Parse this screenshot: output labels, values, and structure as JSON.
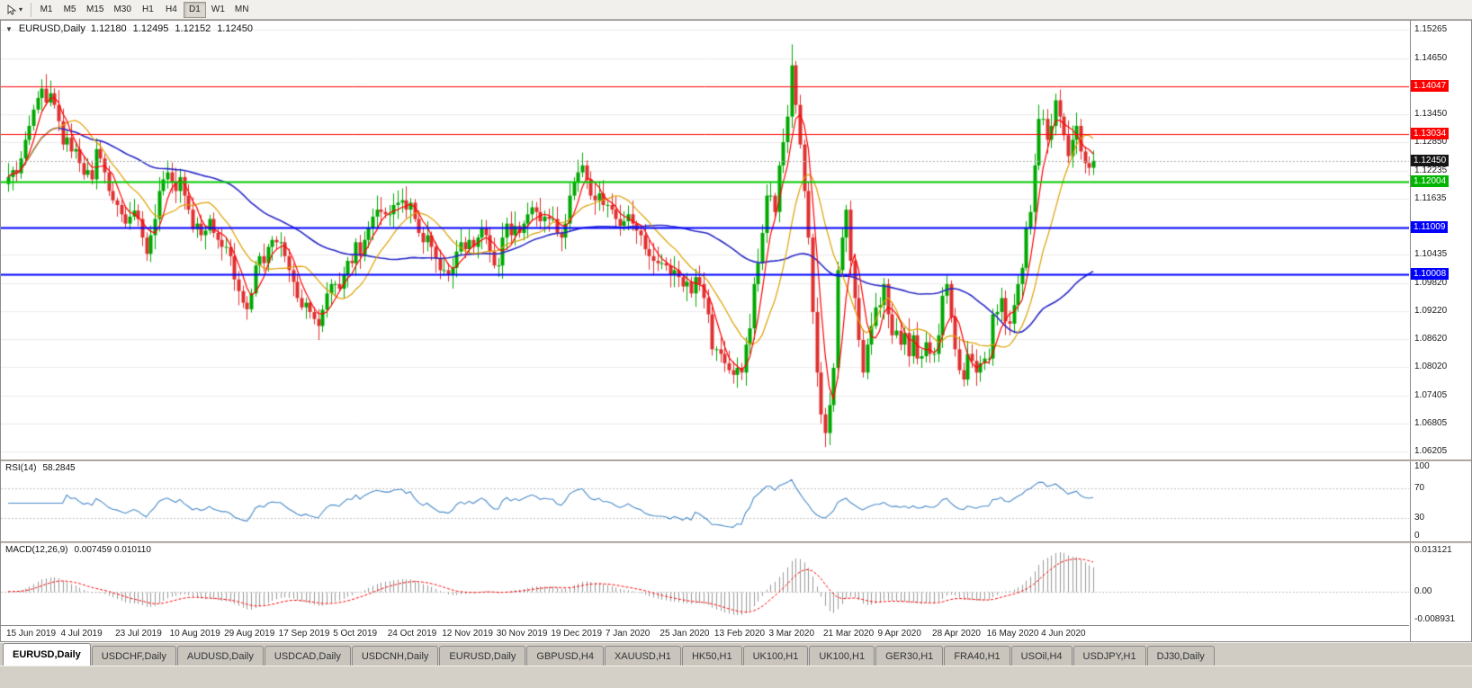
{
  "icons": {
    "collapse": "▼",
    "dropdown": "▾",
    "cursor_tool": "cursor-arrow"
  },
  "toolbar": {
    "timeframes": [
      "M1",
      "M5",
      "M15",
      "M30",
      "H1",
      "H4",
      "D1",
      "W1",
      "MN"
    ],
    "active_timeframe": "D1"
  },
  "chart": {
    "title": {
      "symbol": "EURUSD,Daily",
      "open": "1.12180",
      "high": "1.12495",
      "low": "1.12152",
      "close": "1.12450"
    },
    "price_range": {
      "top": 1.1546,
      "bottom": 1.0603
    },
    "bid": {
      "value": 1.1245,
      "label": "1.12450"
    },
    "levels": [
      {
        "value": 1.14047,
        "label": "1.14047",
        "color": "#ff0000",
        "width": 1
      },
      {
        "value": 1.13034,
        "label": "1.13034",
        "color": "#ff0000",
        "width": 1
      },
      {
        "value": 1.12004,
        "label": "1.12004",
        "color": "#00c800",
        "width": 2
      },
      {
        "value": 1.11009,
        "label": "1.11009",
        "color": "#0000ff",
        "width": 2
      },
      {
        "value": 1.10008,
        "label": "1.10008",
        "color": "#0000ff",
        "width": 2
      }
    ],
    "price_scale": [
      {
        "label": "1.15265",
        "value": 1.15265,
        "type": "tick"
      },
      {
        "label": "1.14650",
        "value": 1.1465,
        "type": "tick"
      },
      {
        "label": "1.14047",
        "value": 1.14047,
        "type": "badge",
        "color": "#ff0000"
      },
      {
        "label": "1.13450",
        "value": 1.1345,
        "type": "tick"
      },
      {
        "label": "1.13034",
        "value": 1.13034,
        "type": "badge",
        "color": "#ff0000"
      },
      {
        "label": "1.12850",
        "value": 1.1285,
        "type": "tick"
      },
      {
        "label": "1.12450",
        "value": 1.1245,
        "type": "badge",
        "color": "#151515"
      },
      {
        "label": "1.12235",
        "value": 1.12235,
        "type": "tick"
      },
      {
        "label": "1.12004",
        "value": 1.12004,
        "type": "badge",
        "color": "#00b400"
      },
      {
        "label": "1.11635",
        "value": 1.11635,
        "type": "tick"
      },
      {
        "label": "1.11009",
        "value": 1.11009,
        "type": "badge",
        "color": "#0000ff"
      },
      {
        "label": "1.10435",
        "value": 1.10435,
        "type": "tick"
      },
      {
        "label": "1.10008",
        "value": 1.10008,
        "type": "badge",
        "color": "#0000ff"
      },
      {
        "label": "1.09820",
        "value": 1.0982,
        "type": "tick"
      },
      {
        "label": "1.09220",
        "value": 1.0922,
        "type": "tick"
      },
      {
        "label": "1.08620",
        "value": 1.0862,
        "type": "tick"
      },
      {
        "label": "1.08020",
        "value": 1.0802,
        "type": "tick"
      },
      {
        "label": "1.07405",
        "value": 1.07405,
        "type": "tick"
      },
      {
        "label": "1.06805",
        "value": 1.06805,
        "type": "tick"
      },
      {
        "label": "1.06205",
        "value": 1.06205,
        "type": "tick"
      }
    ]
  },
  "rsi": {
    "label": "RSI(14)",
    "value": "58.2845",
    "levels": [
      70,
      30
    ],
    "scale": [
      {
        "label": "100",
        "value": 100
      },
      {
        "label": "70",
        "value": 70
      },
      {
        "label": "30",
        "value": 30
      },
      {
        "label": "0",
        "value": 0
      }
    ]
  },
  "macd": {
    "label": "MACD(12,26,9)",
    "values": "0.007459 0.010110",
    "range": {
      "top": 0.013121,
      "bottom": -0.008931
    },
    "scale": [
      {
        "label": "0.013121",
        "value": 0.013121
      },
      {
        "label": "0.00",
        "value": 0
      },
      {
        "label": "-0.008931",
        "value": -0.008931
      }
    ]
  },
  "dates": [
    "15 Jun 2019",
    "4 Jul 2019",
    "23 Jul 2019",
    "10 Aug 2019",
    "29 Aug 2019",
    "17 Sep 2019",
    "5 Oct 2019",
    "24 Oct 2019",
    "12 Nov 2019",
    "30 Nov 2019",
    "19 Dec 2019",
    "7 Jan 2020",
    "25 Jan 2020",
    "13 Feb 2020",
    "3 Mar 2020",
    "21 Mar 2020",
    "9 Apr 2020",
    "28 Apr 2020",
    "16 May 2020",
    "4 Jun 2020"
  ],
  "tabs": {
    "labels": [
      "EURUSD,Daily",
      "USDCHF,Daily",
      "AUDUSD,Daily",
      "USDCAD,Daily",
      "USDCNH,Daily",
      "EURUSD,Daily",
      "GBPUSD,H4",
      "XAUUSD,H1",
      "HK50,H1",
      "UK100,H1",
      "UK100,H1",
      "GER30,H1",
      "FRA40,H1",
      "USOil,H4",
      "USDJPY,H1",
      "DJ30,Daily"
    ],
    "active_index": 0
  },
  "colors": {
    "up": "#00a800",
    "down": "#e03030",
    "ma_fast": "#ff0000",
    "ma_mid": "#dca000",
    "ma_slow": "#2929c8",
    "rsi_line": "#4a8bc8",
    "rsi_level": "#c0c0c0",
    "macd_hist": "#9a9a9a",
    "macd_signal": "#ff0000",
    "grid": "#ebebeb",
    "bid_line": "#a8a8a8"
  },
  "chart_data": {
    "type": "candlestick",
    "symbol": "EURUSD",
    "timeframe": "Daily",
    "title": "EURUSD,Daily 1.12180 1.12495 1.12152 1.12450",
    "x_label_interval": 13,
    "x_labels": [
      "15 Jun 2019",
      "4 Jul 2019",
      "23 Jul 2019",
      "10 Aug 2019",
      "29 Aug 2019",
      "17 Sep 2019",
      "5 Oct 2019",
      "24 Oct 2019",
      "12 Nov 2019",
      "30 Nov 2019",
      "19 Dec 2019",
      "7 Jan 2020",
      "25 Jan 2020",
      "13 Feb 2020",
      "3 Mar 2020",
      "21 Mar 2020",
      "9 Apr 2020",
      "28 Apr 2020",
      "16 May 2020",
      "4 Jun 2020"
    ],
    "ylim": [
      1.06205,
      1.15265
    ],
    "first_open": 1.1195,
    "closes": [
      1.121,
      1.1225,
      1.1218,
      1.125,
      1.129,
      1.132,
      1.1355,
      1.138,
      1.14,
      1.137,
      1.139,
      1.1365,
      1.133,
      1.128,
      1.1295,
      1.1265,
      1.127,
      1.124,
      1.1215,
      1.1225,
      1.1205,
      1.127,
      1.125,
      1.122,
      1.118,
      1.116,
      1.115,
      1.113,
      1.111,
      1.1125,
      1.1138,
      1.112,
      1.108,
      1.1045,
      1.1085,
      1.112,
      1.118,
      1.1205,
      1.122,
      1.12,
      1.118,
      1.121,
      1.117,
      1.114,
      1.1098,
      1.111,
      1.1085,
      1.1095,
      1.112,
      1.109,
      1.1075,
      1.106,
      1.106,
      1.104,
      1.099,
      1.0965,
      1.094,
      1.0926,
      1.096,
      1.102,
      1.104,
      1.1025,
      1.106,
      1.1075,
      1.107,
      1.107,
      1.104,
      1.101,
      1.0985,
      1.095,
      1.093,
      1.094,
      1.092,
      1.0905,
      1.089,
      1.0925,
      1.096,
      1.098,
      1.098,
      1.097,
      1.1,
      1.103,
      1.1025,
      1.107,
      1.104,
      1.1075,
      1.11,
      1.1125,
      1.114,
      1.1135,
      1.113,
      1.113,
      1.115,
      1.1155,
      1.116,
      1.114,
      1.1155,
      1.112,
      1.109,
      1.107,
      1.1085,
      1.106,
      1.1035,
      1.101,
      1.101,
      1.1,
      1.1015,
      1.105,
      1.107,
      1.1055,
      1.1075,
      1.106,
      1.108,
      1.11,
      1.1085,
      1.105,
      1.102,
      1.102,
      1.108,
      1.111,
      1.1085,
      1.1105,
      1.109,
      1.111,
      1.113,
      1.1145,
      1.1135,
      1.1115,
      1.1125,
      1.112,
      1.112,
      1.109,
      1.108,
      1.111,
      1.117,
      1.12,
      1.122,
      1.1235,
      1.1205,
      1.117,
      1.116,
      1.1175,
      1.115,
      1.115,
      1.114,
      1.112,
      1.1105,
      1.1115,
      1.113,
      1.111,
      1.1095,
      1.1085,
      1.1055,
      1.104,
      1.103,
      1.1025,
      1.1025,
      1.102,
      1.1,
      1.101,
      1.0995,
      1.0975,
      1.0985,
      1.096,
      1.0995,
      1.098,
      1.095,
      1.0915,
      1.084,
      1.084,
      1.083,
      1.081,
      1.0795,
      1.0785,
      1.08,
      1.079,
      1.085,
      1.0885,
      1.098,
      1.1025,
      1.109,
      1.117,
      1.117,
      1.1135,
      1.1235,
      1.1285,
      1.134,
      1.145,
      1.1365,
      1.128,
      1.118,
      1.108,
      1.092,
      1.079,
      1.07,
      1.066,
      1.072,
      1.08,
      1.101,
      1.108,
      1.114,
      1.103,
      1.095,
      1.086,
      1.079,
      1.085,
      1.089,
      1.093,
      1.0935,
      1.098,
      1.0915,
      1.087,
      1.088,
      1.085,
      1.0875,
      1.0825,
      1.087,
      1.082,
      1.0825,
      1.0855,
      1.083,
      1.083,
      1.087,
      1.0955,
      1.098,
      1.091,
      1.084,
      1.0795,
      1.0775,
      1.083,
      1.0815,
      1.079,
      1.081,
      1.082,
      1.082,
      1.0915,
      1.092,
      1.095,
      1.09,
      1.0895,
      1.0935,
      1.098,
      1.1015,
      1.11,
      1.1135,
      1.1235,
      1.1335,
      1.1335,
      1.129,
      1.132,
      1.1375,
      1.134,
      1.13,
      1.1255,
      1.129,
      1.132,
      1.1265,
      1.124,
      1.123,
      1.1245
    ],
    "indicators": {
      "ma_fast": 5,
      "ma_mid": 13,
      "ma_slow": 50,
      "rsi": 14,
      "macd": [
        12,
        26,
        9
      ]
    },
    "horizontal_lines": [
      1.14047,
      1.13034,
      1.12004,
      1.11009,
      1.10008
    ],
    "current_bid": 1.1245
  }
}
